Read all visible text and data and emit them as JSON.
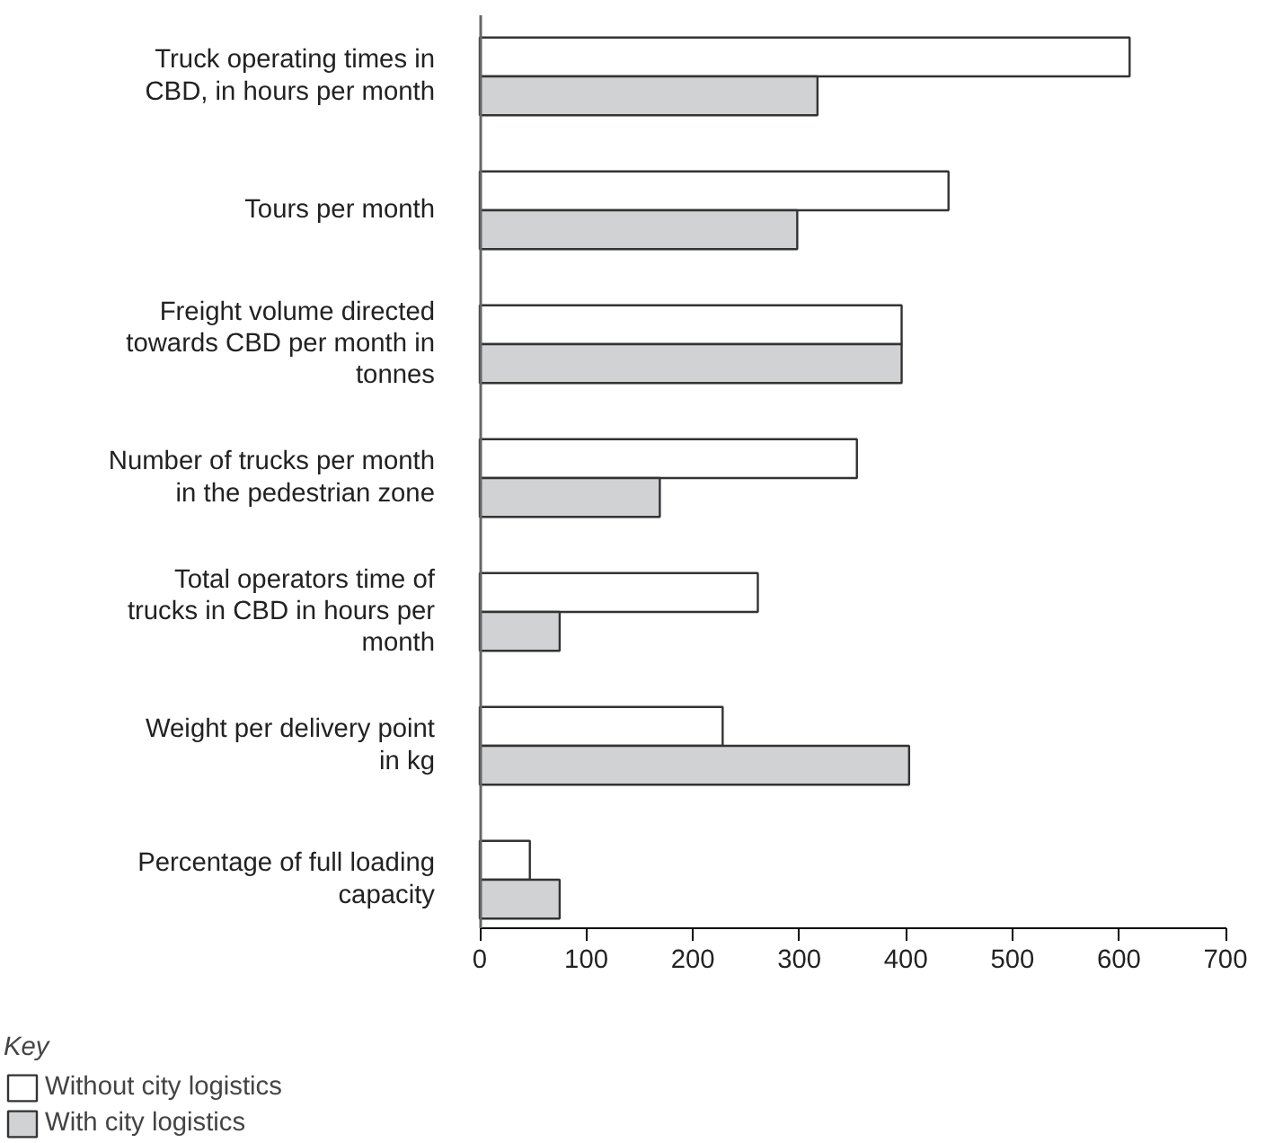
{
  "chart_data": {
    "type": "bar",
    "orientation": "horizontal",
    "categories": [
      "Truck operating times in CBD, in hours per month",
      "Tours per month",
      "Freight volume directed towards CBD per month in tonnes",
      "Number of trucks per month in the pedestrian zone",
      "Total operators time of trucks in CBD in hours per month",
      "Weight per delivery point in kg",
      "Percentage of full loading capacity"
    ],
    "series": [
      {
        "name": "Without city logistics",
        "color": "#ffffff",
        "values": [
          610,
          440,
          396,
          354,
          261,
          228,
          47
        ]
      },
      {
        "name": "With city logistics",
        "color": "#d1d2d4",
        "values": [
          317,
          298,
          396,
          169,
          75,
          403,
          75
        ]
      }
    ],
    "xlim": [
      0,
      700
    ],
    "xticks": [
      0,
      100,
      200,
      300,
      400,
      500,
      600,
      700
    ],
    "legend": "bottom left",
    "legend_title": "Key"
  }
}
